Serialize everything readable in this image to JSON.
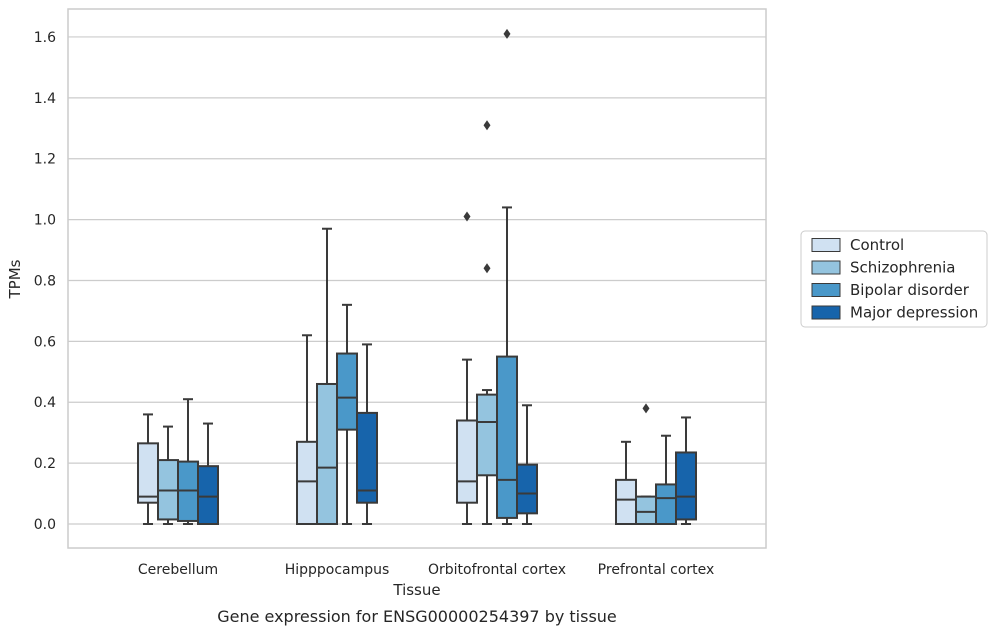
{
  "caption": "Gene expression for ENSG00000254397 by tissue",
  "chart_data": {
    "type": "box",
    "xlabel": "Tissue",
    "ylabel": "TPMs",
    "ylim": [
      -0.08,
      1.69
    ],
    "yticks": [
      "0.0",
      "0.2",
      "0.4",
      "0.6",
      "0.8",
      "1.0",
      "1.2",
      "1.4",
      "1.6"
    ],
    "ytick_values": [
      0.0,
      0.2,
      0.4,
      0.6,
      0.8,
      1.0,
      1.2,
      1.4,
      1.6
    ],
    "grid": "horizontal",
    "legend_position": "right",
    "categories": [
      "Cerebellum",
      "Hipppocampus",
      "Orbitofrontal cortex",
      "Prefrontal cortex"
    ],
    "series": [
      {
        "name": "Control",
        "color": "#d0e1f2",
        "boxes": [
          {
            "whisker_low": 0.0,
            "q1": 0.07,
            "median": 0.09,
            "q3": 0.265,
            "whisker_high": 0.36,
            "outliers": []
          },
          {
            "whisker_low": 0.0,
            "q1": 0.0,
            "median": 0.14,
            "q3": 0.27,
            "whisker_high": 0.62,
            "outliers": []
          },
          {
            "whisker_low": 0.0,
            "q1": 0.07,
            "median": 0.14,
            "q3": 0.34,
            "whisker_high": 0.54,
            "outliers": [
              1.01
            ]
          },
          {
            "whisker_low": 0.0,
            "q1": 0.0,
            "median": 0.08,
            "q3": 0.145,
            "whisker_high": 0.27,
            "outliers": []
          }
        ]
      },
      {
        "name": "Schizophrenia",
        "color": "#94c4df",
        "boxes": [
          {
            "whisker_low": 0.0,
            "q1": 0.015,
            "median": 0.11,
            "q3": 0.21,
            "whisker_high": 0.32,
            "outliers": []
          },
          {
            "whisker_low": 0.0,
            "q1": 0.0,
            "median": 0.185,
            "q3": 0.46,
            "whisker_high": 0.97,
            "outliers": []
          },
          {
            "whisker_low": 0.0,
            "q1": 0.16,
            "median": 0.335,
            "q3": 0.425,
            "whisker_high": 0.44,
            "outliers": [
              0.84,
              1.31
            ]
          },
          {
            "whisker_low": 0.0,
            "q1": 0.0,
            "median": 0.04,
            "q3": 0.09,
            "whisker_high": 0.09,
            "outliers": [
              0.38
            ]
          }
        ]
      },
      {
        "name": "Bipolar disorder",
        "color": "#4a98c9",
        "boxes": [
          {
            "whisker_low": 0.0,
            "q1": 0.01,
            "median": 0.11,
            "q3": 0.205,
            "whisker_high": 0.41,
            "outliers": []
          },
          {
            "whisker_low": 0.0,
            "q1": 0.31,
            "median": 0.415,
            "q3": 0.56,
            "whisker_high": 0.72,
            "outliers": []
          },
          {
            "whisker_low": 0.0,
            "q1": 0.02,
            "median": 0.145,
            "q3": 0.55,
            "whisker_high": 1.04,
            "outliers": [
              1.61
            ]
          },
          {
            "whisker_low": 0.0,
            "q1": 0.0,
            "median": 0.085,
            "q3": 0.13,
            "whisker_high": 0.29,
            "outliers": []
          }
        ]
      },
      {
        "name": "Major depression",
        "color": "#1764ab",
        "boxes": [
          {
            "whisker_low": 0.0,
            "q1": 0.0,
            "median": 0.09,
            "q3": 0.19,
            "whisker_high": 0.33,
            "outliers": []
          },
          {
            "whisker_low": 0.0,
            "q1": 0.07,
            "median": 0.11,
            "q3": 0.365,
            "whisker_high": 0.59,
            "outliers": []
          },
          {
            "whisker_low": 0.0,
            "q1": 0.035,
            "median": 0.1,
            "q3": 0.195,
            "whisker_high": 0.39,
            "outliers": []
          },
          {
            "whisker_low": 0.0,
            "q1": 0.015,
            "median": 0.09,
            "q3": 0.235,
            "whisker_high": 0.35,
            "outliers": []
          }
        ]
      }
    ]
  }
}
